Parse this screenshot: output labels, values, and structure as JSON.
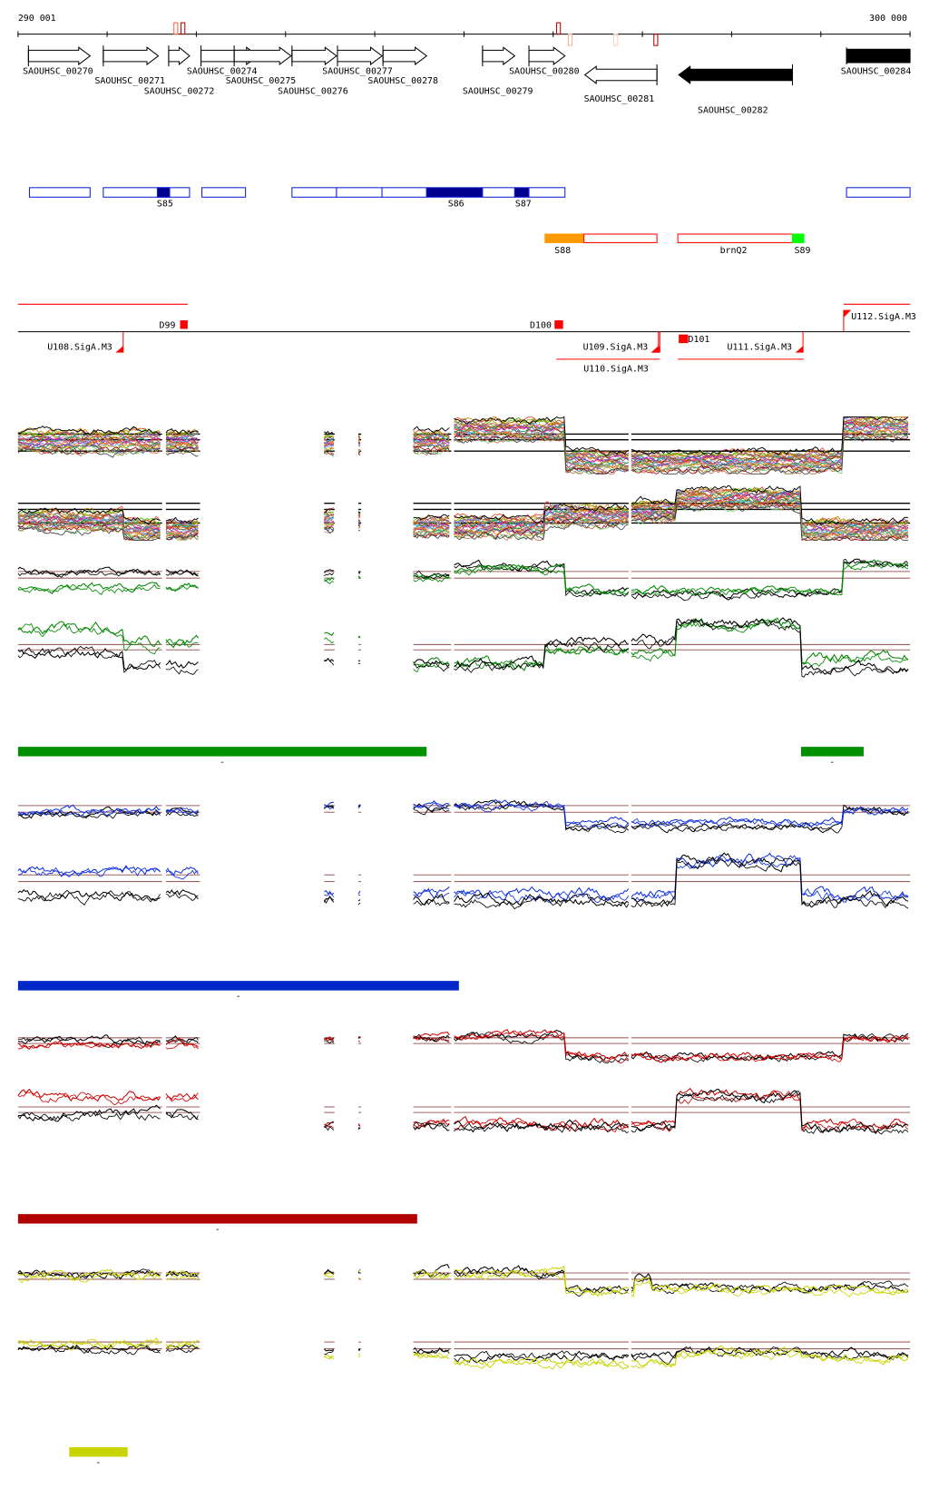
{
  "axis": {
    "start": 290001,
    "end": 300000,
    "start_label": "290 001",
    "end_label": "300 000",
    "tick_every": 1000
  },
  "axis_markers": [
    {
      "bp": 291770,
      "side": "above",
      "color": "#ff6040"
    },
    {
      "bp": 291850,
      "side": "above",
      "color": "#b00000"
    },
    {
      "bp": 296060,
      "side": "above",
      "color": "#b00000"
    },
    {
      "bp": 296190,
      "side": "below",
      "color": "#ffb090"
    },
    {
      "bp": 296700,
      "side": "below",
      "color": "#ffd0c0"
    },
    {
      "bp": 297150,
      "side": "below",
      "color": "#b00000"
    }
  ],
  "genes": [
    {
      "name": "SAOUHSC_00270",
      "start": 290118,
      "end": 290809,
      "strand": "+",
      "filled": false
    },
    {
      "name": "SAOUHSC_00271",
      "start": 290957,
      "end": 291574,
      "strand": "+",
      "filled": false
    },
    {
      "name": "SAOUHSC_00272",
      "start": 291690,
      "end": 291924,
      "strand": "+",
      "filled": false
    },
    {
      "name": "SAOUHSC_00274",
      "start": 292052,
      "end": 292690,
      "strand": "+",
      "filled": false
    },
    {
      "name": "SAOUHSC_00275",
      "start": 292424,
      "end": 293061,
      "strand": "+",
      "filled": false
    },
    {
      "name": "SAOUHSC_00276",
      "start": 293072,
      "end": 293571,
      "strand": "+",
      "filled": false
    },
    {
      "name": "SAOUHSC_00277",
      "start": 293582,
      "end": 294081,
      "strand": "+",
      "filled": false
    },
    {
      "name": "SAOUHSC_00278",
      "start": 294092,
      "end": 294581,
      "strand": "+",
      "filled": false
    },
    {
      "name": "SAOUHSC_00279",
      "start": 295208,
      "end": 295569,
      "strand": "+",
      "filled": false
    },
    {
      "name": "SAOUHSC_00280",
      "start": 295728,
      "end": 296132,
      "strand": "+",
      "filled": false
    },
    {
      "name": "SAOUHSC_00281",
      "start": 296355,
      "end": 297163,
      "strand": "-",
      "filled": false
    },
    {
      "name": "SAOUHSC_00282",
      "start": 297407,
      "end": 298682,
      "strand": "-",
      "filled": true
    },
    {
      "name": "SAOUHSC_00284",
      "start": 299288,
      "end": 300000,
      "strand": "+",
      "filled": true
    }
  ],
  "blue_regions": [
    {
      "start": 290129,
      "end": 290809,
      "dark": false,
      "label": ""
    },
    {
      "start": 290957,
      "end": 291924,
      "dark": false,
      "label": ""
    },
    {
      "start": 291563,
      "end": 291701,
      "dark": true,
      "label": "S85"
    },
    {
      "start": 292062,
      "end": 292551,
      "dark": false,
      "label": ""
    },
    {
      "start": 293072,
      "end": 293571,
      "dark": false,
      "label": ""
    },
    {
      "start": 293571,
      "end": 294081,
      "dark": false,
      "label": ""
    },
    {
      "start": 294081,
      "end": 294581,
      "dark": false,
      "label": ""
    },
    {
      "start": 294581,
      "end": 295208,
      "dark": true,
      "label": "S86"
    },
    {
      "start": 295208,
      "end": 295569,
      "dark": false,
      "label": ""
    },
    {
      "start": 295569,
      "end": 295728,
      "dark": true,
      "label": "S87"
    },
    {
      "start": 295728,
      "end": 296132,
      "dark": false,
      "label": ""
    },
    {
      "start": 299288,
      "end": 300000,
      "dark": false,
      "label": ""
    }
  ],
  "red_regions": [
    {
      "start": 295909,
      "end": 296345,
      "fill": "#ff9900",
      "label": "S88"
    },
    {
      "start": 296345,
      "end": 297163,
      "fill": "none",
      "label": ""
    },
    {
      "start": 297397,
      "end": 298682,
      "fill": "none",
      "label": "brnQ2"
    },
    {
      "start": 298682,
      "end": 298810,
      "fill": "#00ff00",
      "label": "S89"
    }
  ],
  "terminators": [
    {
      "name": "D99",
      "start": 291818,
      "end": 291903
    },
    {
      "name": "D100",
      "start": 296015,
      "end": 296111
    },
    {
      "name": "D101",
      "start": 297407,
      "end": 297513
    }
  ],
  "promoters": [
    {
      "name": "U108.SigA.M3",
      "bp": 291180,
      "strand": "-"
    },
    {
      "name": "U109.SigA.M3",
      "bp": 297195,
      "strand": "-"
    },
    {
      "name": "U110.SigA.M3",
      "bp": 297180,
      "strand": "-"
    },
    {
      "name": "U111.SigA.M3",
      "bp": 298800,
      "strand": "-"
    },
    {
      "name": "U112.SigA.M3",
      "bp": 299256,
      "strand": "+"
    }
  ],
  "transcripts": [
    {
      "start": 290001,
      "end": 291903,
      "strand": "+"
    },
    {
      "start": 299256,
      "end": 300000,
      "strand": "+"
    },
    {
      "start": 296036,
      "end": 297195,
      "strand": "-"
    },
    {
      "start": 297397,
      "end": 298810,
      "strand": "-"
    }
  ],
  "coverage": [
    [
      290001,
      291616
    ],
    [
      291660,
      292041
    ],
    [
      293433,
      293550
    ],
    [
      293816,
      293848
    ],
    [
      294432,
      294857
    ],
    [
      294889,
      296845
    ],
    [
      296876,
      300000
    ]
  ],
  "panels": [
    {
      "id": "expr-plus-all",
      "multi": true,
      "ref_lines": [
        0.3,
        0.4,
        0.6
      ],
      "ref_color": "#000000",
      "spread": 0.35,
      "profile": [
        [
          290001,
          291616,
          0.45
        ],
        [
          291616,
          292041,
          0.45
        ],
        [
          293433,
          293850,
          0.5
        ],
        [
          294432,
          294857,
          0.45
        ],
        [
          294889,
          296122,
          0.25
        ],
        [
          296122,
          299256,
          0.8
        ],
        [
          299256,
          300000,
          0.2
        ]
      ]
    },
    {
      "id": "expr-minus-all",
      "multi": true,
      "ref_lines": [
        0.4,
        0.5,
        0.72
      ],
      "ref_color": "#000000",
      "spread": 0.3,
      "profile": [
        [
          290001,
          291180,
          0.7
        ],
        [
          291180,
          292041,
          0.85
        ],
        [
          293433,
          293850,
          0.7
        ],
        [
          294432,
          295900,
          0.8
        ],
        [
          295900,
          296845,
          0.62
        ],
        [
          296876,
          297386,
          0.55
        ],
        [
          297386,
          298778,
          0.35
        ],
        [
          298778,
          300000,
          0.85
        ]
      ]
    },
    {
      "id": "green-plus",
      "ref_lines": [
        0.26,
        0.4
      ],
      "ref_color": "#a06060",
      "series": [
        {
          "color": "#000000",
          "profile": [
            [
              290001,
              292041,
              0.25
            ],
            [
              293433,
              294857,
              0.3
            ],
            [
              294889,
              296122,
              0.15
            ],
            [
              296122,
              299256,
              0.72
            ],
            [
              299256,
              300000,
              0.08
            ]
          ]
        },
        {
          "color": "#008800",
          "profile": [
            [
              290001,
              292041,
              0.6
            ],
            [
              293433,
              294857,
              0.4
            ],
            [
              294889,
              296122,
              0.2
            ],
            [
              296122,
              299256,
              0.65
            ],
            [
              299256,
              300000,
              0.12
            ]
          ]
        }
      ]
    },
    {
      "id": "green-minus",
      "ref_lines": [
        0.43,
        0.51
      ],
      "ref_color": "#a06060",
      "series": [
        {
          "color": "#008800",
          "profile": [
            [
              290001,
              291180,
              0.2
            ],
            [
              291180,
              292041,
              0.4
            ],
            [
              293433,
              293850,
              0.3
            ],
            [
              294432,
              295900,
              0.72
            ],
            [
              295900,
              296845,
              0.5
            ],
            [
              296876,
              297386,
              0.55
            ],
            [
              297386,
              298778,
              0.12
            ],
            [
              298778,
              300000,
              0.62
            ]
          ]
        },
        {
          "color": "#000000",
          "profile": [
            [
              290001,
              291180,
              0.55
            ],
            [
              291180,
              292041,
              0.75
            ],
            [
              293433,
              293850,
              0.7
            ],
            [
              294432,
              295900,
              0.72
            ],
            [
              295900,
              296845,
              0.4
            ],
            [
              296876,
              297386,
              0.38
            ],
            [
              297386,
              298778,
              0.12
            ],
            [
              298778,
              300000,
              0.78
            ]
          ]
        }
      ]
    },
    {
      "id": "blue-plus",
      "ref_lines": [
        0.3,
        0.44
      ],
      "ref_color": "#a06060",
      "series": [
        {
          "color": "#000000",
          "profile": [
            [
              290001,
              292041,
              0.45
            ],
            [
              293433,
              294857,
              0.35
            ],
            [
              294889,
              296122,
              0.3
            ],
            [
              296122,
              299256,
              0.75
            ],
            [
              299256,
              300000,
              0.4
            ]
          ]
        },
        {
          "color": "#1030e0",
          "profile": [
            [
              290001,
              292041,
              0.42
            ],
            [
              293433,
              294857,
              0.3
            ],
            [
              294889,
              296122,
              0.28
            ],
            [
              296122,
              299256,
              0.65
            ],
            [
              299256,
              300000,
              0.38
            ]
          ]
        }
      ]
    },
    {
      "id": "blue-minus",
      "ref_lines": [
        0.33,
        0.43
      ],
      "ref_color": "#a06060",
      "series": [
        {
          "color": "#1030e0",
          "profile": [
            [
              290001,
              292041,
              0.25
            ],
            [
              293433,
              297386,
              0.62
            ],
            [
              297386,
              298778,
              0.1
            ],
            [
              298778,
              300000,
              0.62
            ]
          ]
        },
        {
          "color": "#000000",
          "profile": [
            [
              290001,
              292041,
              0.62
            ],
            [
              293433,
              297386,
              0.72
            ],
            [
              297386,
              298778,
              0.12
            ],
            [
              298778,
              300000,
              0.72
            ]
          ]
        }
      ]
    },
    {
      "id": "red-plus",
      "ref_lines": [
        0.3,
        0.42
      ],
      "ref_color": "#a06060",
      "series": [
        {
          "color": "#000000",
          "profile": [
            [
              290001,
              292041,
              0.35
            ],
            [
              293433,
              294857,
              0.3
            ],
            [
              294889,
              296122,
              0.25
            ],
            [
              296122,
              299256,
              0.7
            ],
            [
              299256,
              300000,
              0.3
            ]
          ]
        },
        {
          "color": "#d00000",
          "profile": [
            [
              290001,
              292041,
              0.45
            ],
            [
              293433,
              294857,
              0.3
            ],
            [
              294889,
              296122,
              0.25
            ],
            [
              296122,
              299256,
              0.68
            ],
            [
              299256,
              300000,
              0.32
            ]
          ]
        }
      ]
    },
    {
      "id": "red-minus",
      "ref_lines": [
        0.43,
        0.52
      ],
      "ref_color": "#a06060",
      "series": [
        {
          "color": "#d00000",
          "profile": [
            [
              290001,
              292041,
              0.25
            ],
            [
              293433,
              297386,
              0.7
            ],
            [
              297386,
              298778,
              0.25
            ],
            [
              298778,
              300000,
              0.7
            ]
          ]
        },
        {
          "color": "#000000",
          "profile": [
            [
              290001,
              292041,
              0.55
            ],
            [
              293433,
              297386,
              0.75
            ],
            [
              297386,
              298778,
              0.25
            ],
            [
              298778,
              300000,
              0.78
            ]
          ]
        }
      ]
    },
    {
      "id": "yellow-plus",
      "ref_lines": [
        0.33,
        0.45
      ],
      "ref_color": "#a06060",
      "series": [
        {
          "color": "#000000",
          "profile": [
            [
              290001,
              292041,
              0.35
            ],
            [
              293433,
              294857,
              0.3
            ],
            [
              294889,
              296122,
              0.3
            ],
            [
              296122,
              296900,
              0.65
            ],
            [
              296900,
              297100,
              0.4
            ],
            [
              297100,
              300000,
              0.6
            ]
          ]
        },
        {
          "color": "#c8d400",
          "profile": [
            [
              290001,
              292041,
              0.38
            ],
            [
              293433,
              294857,
              0.35
            ],
            [
              294889,
              296122,
              0.32
            ],
            [
              296122,
              296900,
              0.7
            ],
            [
              296900,
              297100,
              0.5
            ],
            [
              297100,
              300000,
              0.65
            ]
          ]
        }
      ]
    },
    {
      "id": "yellow-minus",
      "ref_lines": [
        0.29,
        0.42
      ],
      "ref_color": "#a06060",
      "series": [
        {
          "color": "#000000",
          "profile": [
            [
              290001,
              292041,
              0.4
            ],
            [
              293433,
              294857,
              0.45
            ],
            [
              294889,
              297386,
              0.55
            ],
            [
              297386,
              298778,
              0.45
            ],
            [
              298778,
              300000,
              0.5
            ]
          ]
        },
        {
          "color": "#c8d400",
          "profile": [
            [
              290001,
              292041,
              0.32
            ],
            [
              293433,
              294857,
              0.55
            ],
            [
              294889,
              297386,
              0.68
            ],
            [
              297386,
              298778,
              0.5
            ],
            [
              298778,
              300000,
              0.6
            ]
          ]
        }
      ]
    }
  ],
  "condition_bars": [
    {
      "color": "#009000",
      "ranges": [
        [
          290001,
          294581
        ],
        [
          298778,
          299480
        ]
      ],
      "label": "-"
    },
    {
      "color": "#0028c8",
      "ranges": [
        [
          290001,
          294943
        ]
      ],
      "label": "-"
    },
    {
      "color": "#b00000",
      "ranges": [
        [
          290001,
          294475
        ]
      ],
      "label": "-"
    },
    {
      "color": "#c8d400",
      "ranges": [
        [
          290575,
          291230
        ]
      ],
      "label": "-"
    }
  ]
}
